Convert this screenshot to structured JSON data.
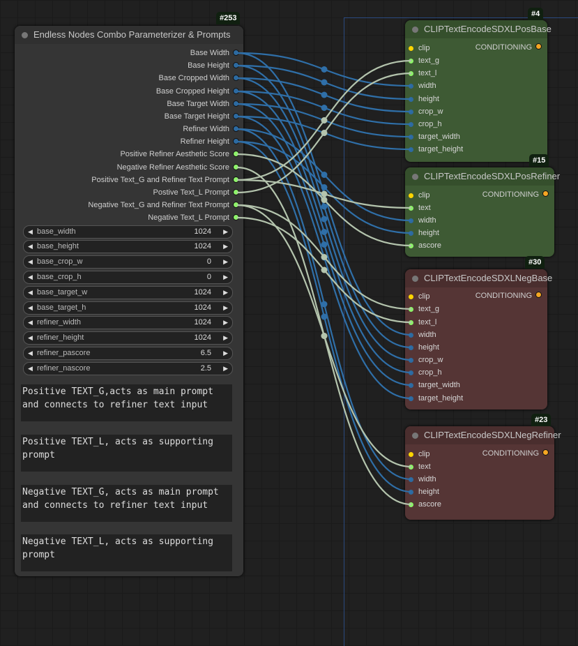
{
  "colors": {
    "int": "#2d6aa0",
    "float": "#8ef26a",
    "string": "#8ef26a",
    "clip": "#ffd500",
    "cond": "#f5a623",
    "wire_int": "#2f6fa8",
    "wire_str": "#b4c4ad",
    "pos_node": "#3e5a34",
    "neg_node": "#553535"
  },
  "source": {
    "badge": "#253",
    "title": "Endless Nodes Combo Parameterizer & Prompts",
    "outputs": [
      {
        "label": "Base Width",
        "type": "int"
      },
      {
        "label": "Base Height",
        "type": "int"
      },
      {
        "label": "Base Cropped Width",
        "type": "int"
      },
      {
        "label": "Base Cropped Height",
        "type": "int"
      },
      {
        "label": "Base Target Width",
        "type": "int"
      },
      {
        "label": "Base Target Height",
        "type": "int"
      },
      {
        "label": "Refiner Width",
        "type": "int"
      },
      {
        "label": "Refiner Height",
        "type": "int"
      },
      {
        "label": "Positive Refiner Aesthetic Score",
        "type": "float"
      },
      {
        "label": "Negative Refiner Aesthetic Score",
        "type": "float"
      },
      {
        "label": "Positive Text_G and Refiner Text Prompt",
        "type": "string"
      },
      {
        "label": "Postive Text_L Prompt",
        "type": "string"
      },
      {
        "label": "Negative Text_G and Refiner Text Prompt",
        "type": "string"
      },
      {
        "label": "Negative Text_L Prompt",
        "type": "string"
      }
    ],
    "widgets": [
      {
        "name": "base_width",
        "value": "1024"
      },
      {
        "name": "base_height",
        "value": "1024"
      },
      {
        "name": "base_crop_w",
        "value": "0"
      },
      {
        "name": "base_crop_h",
        "value": "0"
      },
      {
        "name": "base_target_w",
        "value": "1024"
      },
      {
        "name": "base_target_h",
        "value": "1024"
      },
      {
        "name": "refiner_width",
        "value": "1024"
      },
      {
        "name": "refiner_height",
        "value": "1024"
      },
      {
        "name": "refiner_pascore",
        "value": "6.5"
      },
      {
        "name": "refiner_nascore",
        "value": "2.5"
      }
    ],
    "textareas": [
      "Positive TEXT_G,acts as main prompt\nand connects to refiner text input",
      "Positive TEXT_L, acts as supporting\nprompt",
      "Negative TEXT_G, acts as main prompt\nand connects to refiner text input",
      "Negative TEXT_L, acts as supporting\nprompt"
    ]
  },
  "targets": [
    {
      "badge": "#4",
      "title": "CLIPTextEncodeSDXLPosBase",
      "kind": "pos",
      "output": "CONDITIONING",
      "inputs": [
        {
          "label": "clip",
          "type": "clip"
        },
        {
          "label": "text_g",
          "type": "string"
        },
        {
          "label": "text_l",
          "type": "string"
        },
        {
          "label": "width",
          "type": "int"
        },
        {
          "label": "height",
          "type": "int"
        },
        {
          "label": "crop_w",
          "type": "int"
        },
        {
          "label": "crop_h",
          "type": "int"
        },
        {
          "label": "target_width",
          "type": "int"
        },
        {
          "label": "target_height",
          "type": "int"
        }
      ]
    },
    {
      "badge": "#15",
      "title": "CLIPTextEncodeSDXLPosRefiner",
      "kind": "pos",
      "output": "CONDITIONING",
      "inputs": [
        {
          "label": "clip",
          "type": "clip"
        },
        {
          "label": "text",
          "type": "string"
        },
        {
          "label": "width",
          "type": "int"
        },
        {
          "label": "height",
          "type": "int"
        },
        {
          "label": "ascore",
          "type": "float"
        }
      ]
    },
    {
      "badge": "#30",
      "title": "CLIPTextEncodeSDXLNegBase",
      "kind": "neg",
      "output": "CONDITIONING",
      "inputs": [
        {
          "label": "clip",
          "type": "clip"
        },
        {
          "label": "text_g",
          "type": "string"
        },
        {
          "label": "text_l",
          "type": "string"
        },
        {
          "label": "width",
          "type": "int"
        },
        {
          "label": "height",
          "type": "int"
        },
        {
          "label": "crop_w",
          "type": "int"
        },
        {
          "label": "crop_h",
          "type": "int"
        },
        {
          "label": "target_width",
          "type": "int"
        },
        {
          "label": "target_height",
          "type": "int"
        }
      ]
    },
    {
      "badge": "#23",
      "title": "CLIPTextEncodeSDXLNegRefiner",
      "kind": "neg",
      "output": "CONDITIONING",
      "inputs": [
        {
          "label": "clip",
          "type": "clip"
        },
        {
          "label": "text",
          "type": "string"
        },
        {
          "label": "width",
          "type": "int"
        },
        {
          "label": "height",
          "type": "int"
        },
        {
          "label": "ascore",
          "type": "float"
        }
      ]
    }
  ],
  "links": [
    [
      0,
      0,
      3
    ],
    [
      0,
      2,
      3
    ],
    [
      1,
      0,
      4
    ],
    [
      1,
      2,
      4
    ],
    [
      2,
      0,
      5
    ],
    [
      2,
      2,
      5
    ],
    [
      3,
      0,
      6
    ],
    [
      3,
      2,
      6
    ],
    [
      4,
      0,
      7
    ],
    [
      4,
      2,
      7
    ],
    [
      5,
      0,
      8
    ],
    [
      5,
      2,
      8
    ],
    [
      6,
      1,
      2
    ],
    [
      6,
      3,
      2
    ],
    [
      7,
      1,
      3
    ],
    [
      7,
      3,
      3
    ],
    [
      8,
      1,
      4
    ],
    [
      9,
      3,
      4
    ],
    [
      10,
      0,
      1
    ],
    [
      10,
      1,
      1
    ],
    [
      11,
      0,
      2
    ],
    [
      12,
      2,
      1
    ],
    [
      12,
      3,
      1
    ],
    [
      13,
      2,
      2
    ]
  ]
}
